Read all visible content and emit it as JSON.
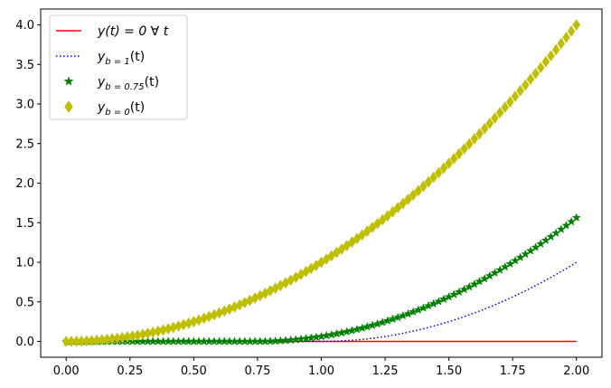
{
  "chart_data": {
    "type": "line",
    "xlim": [
      -0.1,
      2.1
    ],
    "ylim": [
      -0.2,
      4.2
    ],
    "x_ticks": [
      0.0,
      0.25,
      0.5,
      0.75,
      1.0,
      1.25,
      1.5,
      1.75,
      2.0
    ],
    "x_tick_labels": [
      "0.00",
      "0.25",
      "0.50",
      "0.75",
      "1.00",
      "1.25",
      "1.50",
      "1.75",
      "2.00"
    ],
    "y_ticks": [
      0.0,
      0.5,
      1.0,
      1.5,
      2.0,
      2.5,
      3.0,
      3.5,
      4.0
    ],
    "y_tick_labels": [
      "0.0",
      "0.5",
      "1.0",
      "1.5",
      "2.0",
      "2.5",
      "3.0",
      "3.5",
      "4.0"
    ],
    "grid": false,
    "legend_position": "upper-left",
    "x_samples": {
      "start": 0,
      "end": 2,
      "count": 101
    },
    "series": [
      {
        "id": "zero",
        "legend": {
          "main": "y(t) = 0 ∀ t",
          "sub": ""
        },
        "style": "solid-line",
        "color": "#ff0000",
        "formula": "y = 0",
        "x": [
          0,
          0.5,
          1.0,
          1.5,
          2.0
        ],
        "y": [
          0,
          0,
          0,
          0,
          0
        ]
      },
      {
        "id": "b1",
        "legend": {
          "main": "y",
          "sub": "b = 1",
          "tail": "(t)"
        },
        "style": "dotted-line",
        "color": "#0000ff",
        "formula": "y = max(0, t - 1)^2",
        "x": [
          0,
          0.5,
          1.0,
          1.25,
          1.5,
          1.75,
          2.0
        ],
        "y": [
          0,
          0,
          0,
          0.0625,
          0.25,
          0.5625,
          1.0
        ]
      },
      {
        "id": "b075",
        "legend": {
          "main": "y",
          "sub": "b = 0.75",
          "tail": "(t)"
        },
        "style": "star-markers",
        "color": "#008000",
        "formula": "y = max(0, t - 0.75)^2",
        "x": [
          0,
          0.5,
          0.75,
          1.0,
          1.25,
          1.5,
          1.75,
          2.0
        ],
        "y": [
          0,
          0,
          0,
          0.0625,
          0.25,
          0.5625,
          1.0,
          1.5625
        ]
      },
      {
        "id": "b0",
        "legend": {
          "main": "y",
          "sub": "b = 0",
          "tail": "(t)"
        },
        "style": "diamond-markers",
        "color": "#bfbf00",
        "formula": "y = t^2",
        "x": [
          0,
          0.25,
          0.5,
          0.75,
          1.0,
          1.25,
          1.5,
          1.75,
          2.0
        ],
        "y": [
          0,
          0.0625,
          0.25,
          0.5625,
          1.0,
          1.5625,
          2.25,
          3.0625,
          4.0
        ]
      }
    ]
  }
}
